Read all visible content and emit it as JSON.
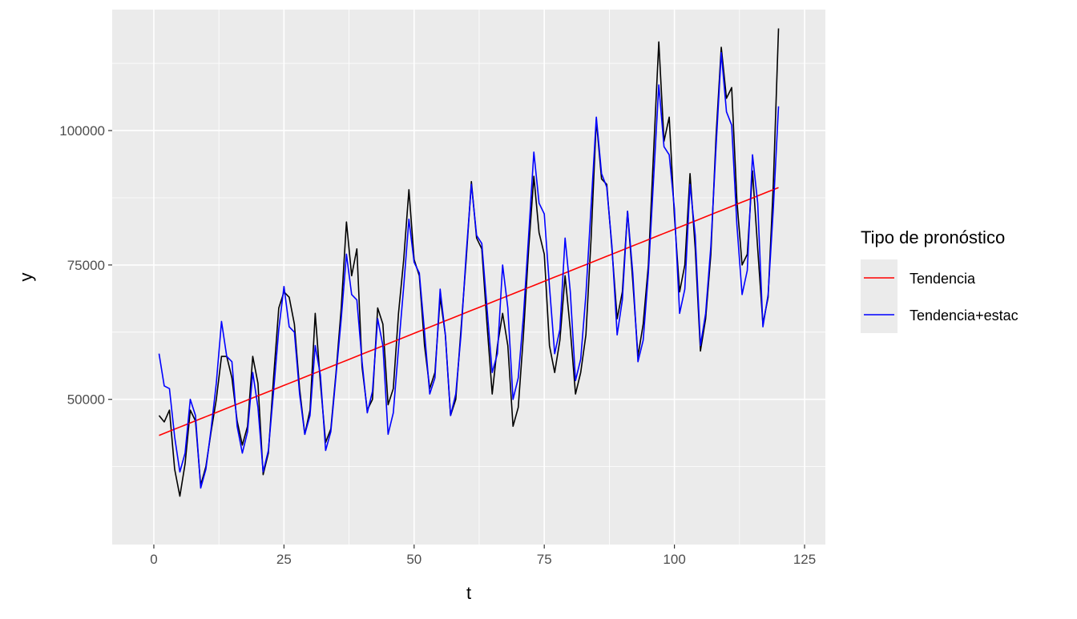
{
  "chart_data": {
    "type": "line",
    "xlabel": "t",
    "ylabel": "y",
    "xlim": [
      -8,
      129
    ],
    "ylim": [
      23000,
      122500
    ],
    "x_ticks": [
      0,
      25,
      50,
      75,
      100,
      125
    ],
    "x_tick_labels": [
      "0",
      "25",
      "50",
      "75",
      "100",
      "125"
    ],
    "y_ticks": [
      50000,
      75000,
      100000
    ],
    "y_tick_labels": [
      "50000",
      "75000",
      "100000"
    ],
    "grid": true,
    "panel_background": "#ebebeb",
    "legend": {
      "title": "Tipo de pronóstico",
      "position": "right",
      "entries": [
        {
          "label": "Tendencia",
          "color": "#ff0000"
        },
        {
          "label": "Tendencia+estac",
          "color": "#0000ff"
        }
      ]
    },
    "x": [
      1,
      2,
      3,
      4,
      5,
      6,
      7,
      8,
      9,
      10,
      11,
      12,
      13,
      14,
      15,
      16,
      17,
      18,
      19,
      20,
      21,
      22,
      23,
      24,
      25,
      26,
      27,
      28,
      29,
      30,
      31,
      32,
      33,
      34,
      35,
      36,
      37,
      38,
      39,
      40,
      41,
      42,
      43,
      44,
      45,
      46,
      47,
      48,
      49,
      50,
      51,
      52,
      53,
      54,
      55,
      56,
      57,
      58,
      59,
      60,
      61,
      62,
      63,
      64,
      65,
      66,
      67,
      68,
      69,
      70,
      71,
      72,
      73,
      74,
      75,
      76,
      77,
      78,
      79,
      80,
      81,
      82,
      83,
      84,
      85,
      86,
      87,
      88,
      89,
      90,
      91,
      92,
      93,
      94,
      95,
      96,
      97,
      98,
      99,
      100,
      101,
      102,
      103,
      104,
      105,
      106,
      107,
      108,
      109,
      110,
      111,
      112,
      113,
      114,
      115,
      116,
      117,
      118,
      119,
      120
    ],
    "series": [
      {
        "color": "#000000",
        "values": [
          47000,
          45800,
          48000,
          37000,
          32000,
          38000,
          48000,
          46000,
          34000,
          37500,
          44000,
          50000,
          58000,
          58000,
          54000,
          46000,
          41500,
          45000,
          58000,
          53000,
          36000,
          40000,
          54000,
          67000,
          70000,
          69000,
          64000,
          52000,
          43500,
          48000,
          66000,
          53000,
          42000,
          44500,
          55000,
          67000,
          83000,
          73000,
          78000,
          56000,
          48000,
          50000,
          67000,
          64000,
          49000,
          52000,
          66000,
          76000,
          89000,
          76000,
          73000,
          60000,
          52000,
          55000,
          69000,
          62000,
          47000,
          50000,
          63000,
          76000,
          90500,
          80000,
          78000,
          64000,
          51000,
          60000,
          66000,
          60000,
          45000,
          48500,
          62000,
          78000,
          91500,
          81000,
          77000,
          60000,
          55000,
          61000,
          73000,
          63000,
          51000,
          55000,
          62000,
          80000,
          102000,
          91000,
          90000,
          78000,
          65000,
          70000,
          85000,
          72000,
          58000,
          64000,
          75000,
          96000,
          116500,
          98000,
          102500,
          84000,
          70000,
          75000,
          92000,
          78000,
          59000,
          65000,
          77000,
          99000,
          115500,
          106000,
          108000,
          87000,
          75000,
          77000,
          92500,
          78000,
          64000,
          69000,
          90000,
          119000
        ]
      },
      {
        "name": "Tendencia",
        "color": "#ff0000",
        "start": 43300,
        "end": 89400
      },
      {
        "name": "Tendencia+estac",
        "color": "#0000ff",
        "values": [
          58500,
          52500,
          52000,
          43000,
          36500,
          40000,
          50000,
          47000,
          33500,
          37000,
          44500,
          53000,
          64500,
          58000,
          57000,
          45000,
          40000,
          44000,
          55000,
          48500,
          36500,
          40500,
          51500,
          63000,
          71000,
          63500,
          62500,
          51000,
          43500,
          47000,
          60000,
          54500,
          40500,
          44000,
          54500,
          65000,
          77000,
          69500,
          68500,
          57000,
          47500,
          51500,
          65000,
          60000,
          43500,
          47500,
          59500,
          71000,
          83500,
          75500,
          73500,
          62500,
          51000,
          54000,
          70500,
          62000,
          47000,
          51000,
          62000,
          77000,
          90000,
          80500,
          79000,
          67000,
          55000,
          58500,
          75000,
          67000,
          50000,
          54000,
          65500,
          80500,
          96000,
          86500,
          84500,
          71000,
          58500,
          63000,
          80000,
          70000,
          53500,
          57500,
          69500,
          86000,
          102500,
          92000,
          89500,
          78500,
          62000,
          68500,
          85000,
          73500,
          57000,
          61000,
          73500,
          91000,
          108500,
          97000,
          95500,
          85500,
          66000,
          70500,
          90000,
          80500,
          60000,
          66000,
          78500,
          97000,
          114500,
          103500,
          101000,
          82500,
          69500,
          74000,
          95500,
          86500,
          63500,
          69500,
          85500,
          104500
        ]
      }
    ]
  }
}
